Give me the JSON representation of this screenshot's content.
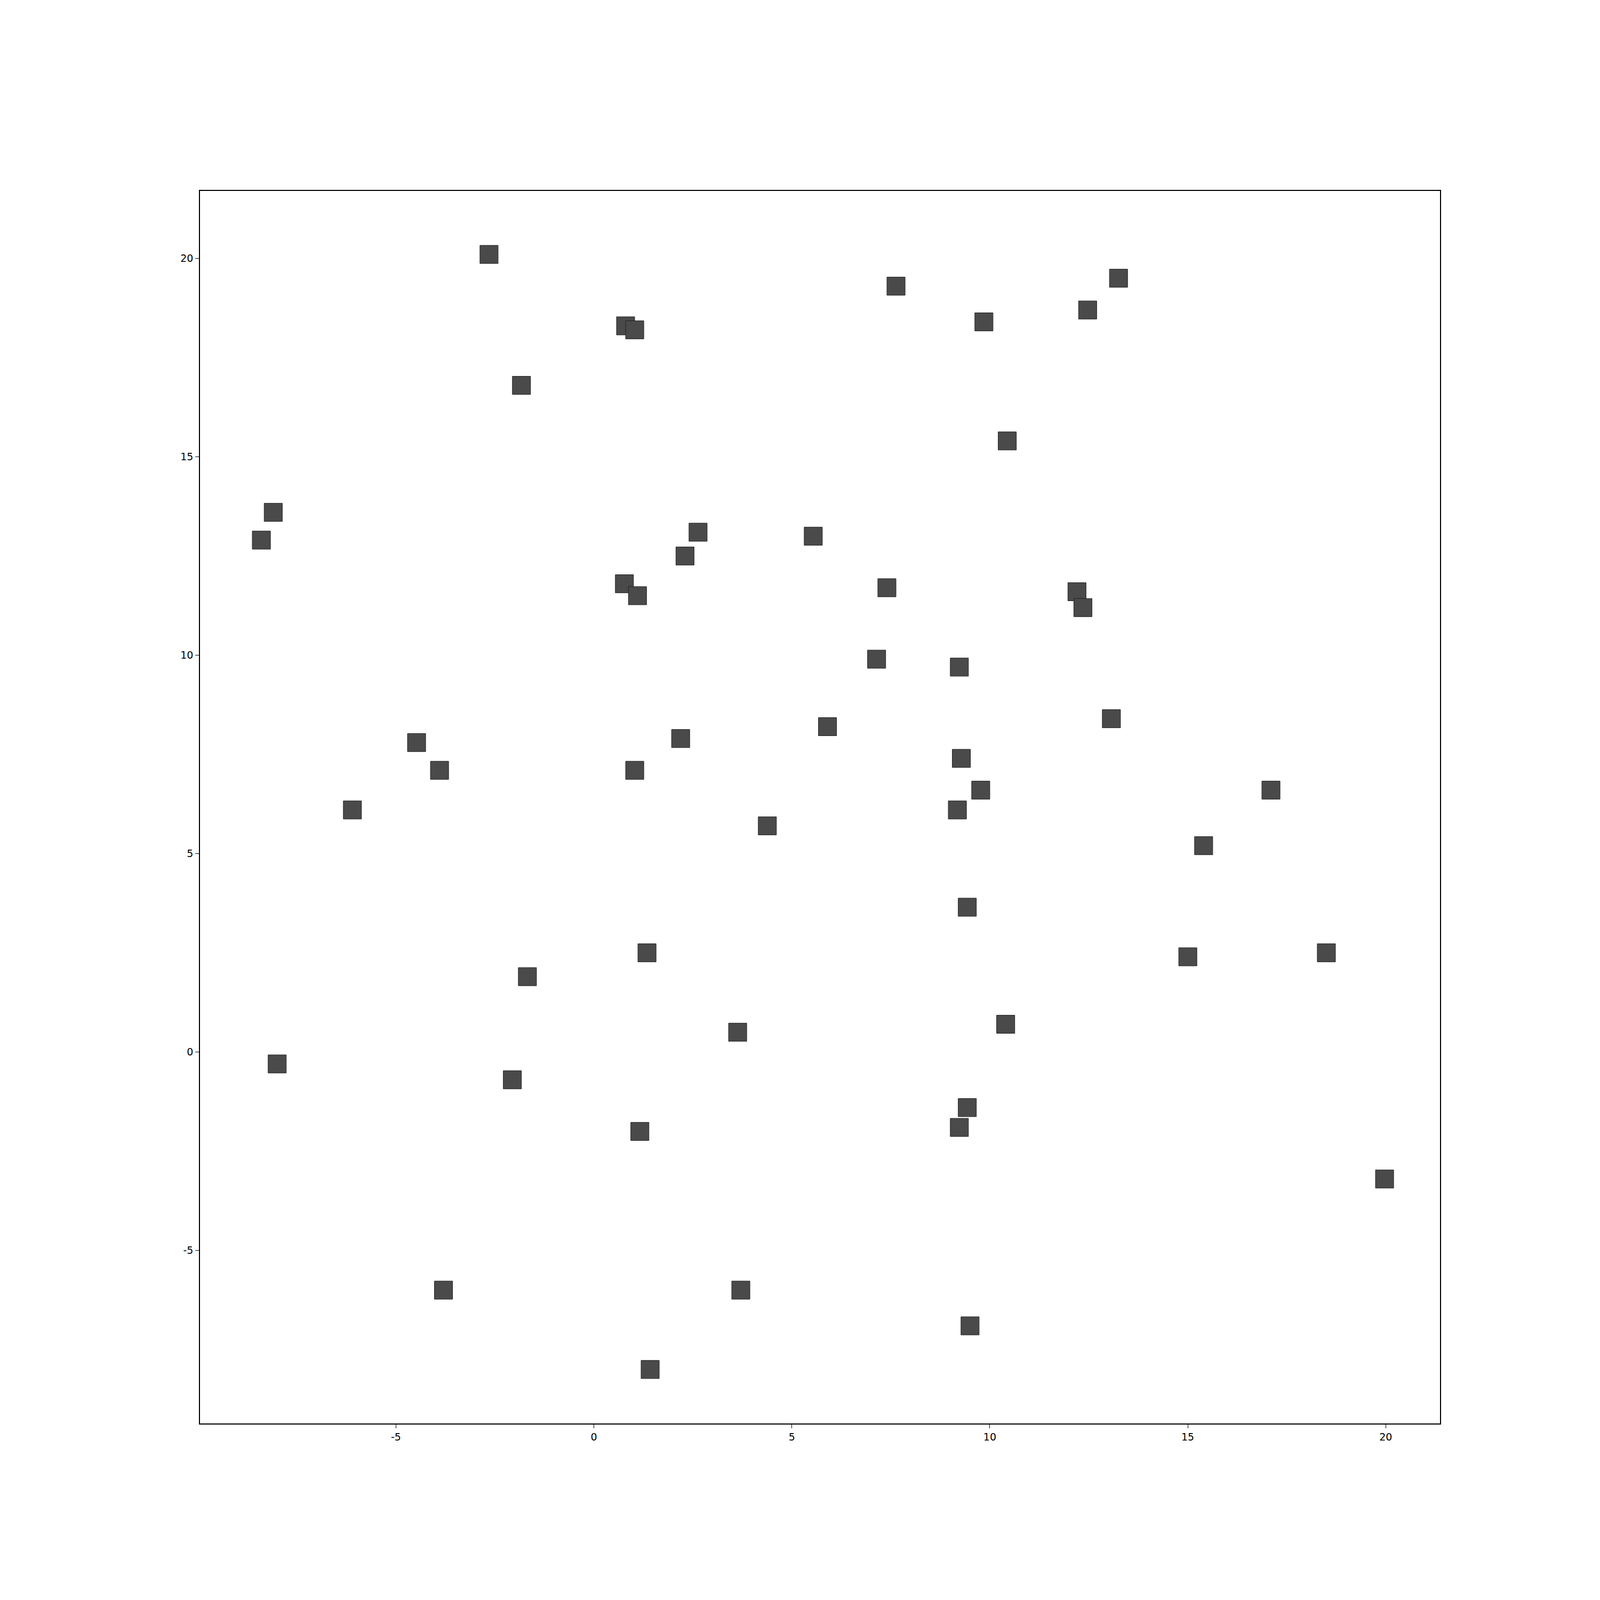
{
  "chart_data": {
    "type": "scatter",
    "marker": "square",
    "color": "#4a4a4a",
    "grid": false,
    "x": [
      -2.65,
      7.63,
      9.85,
      12.47,
      13.25,
      0.8,
      1.03,
      -1.83,
      10.44,
      -8.1,
      -8.4,
      2.63,
      2.3,
      5.54,
      0.77,
      1.1,
      7.4,
      12.2,
      12.35,
      7.14,
      9.23,
      13.07,
      5.9,
      2.19,
      -4.48,
      -3.9,
      1.03,
      -6.1,
      4.38,
      9.28,
      9.77,
      9.18,
      17.1,
      15.4,
      9.43,
      1.34,
      15.0,
      18.5,
      -1.68,
      3.63,
      10.4,
      -8.0,
      -2.06,
      9.43,
      9.23,
      1.16,
      19.97,
      -3.8,
      3.71,
      9.5,
      1.42
    ],
    "y": [
      20.1,
      19.3,
      18.4,
      18.7,
      19.5,
      18.3,
      18.2,
      16.8,
      15.4,
      13.6,
      12.9,
      13.1,
      12.5,
      13.0,
      11.8,
      11.5,
      11.7,
      11.6,
      11.2,
      9.9,
      9.7,
      8.4,
      8.2,
      7.9,
      7.8,
      7.1,
      7.1,
      6.1,
      5.7,
      7.4,
      6.6,
      6.1,
      6.6,
      5.2,
      3.65,
      2.5,
      2.4,
      2.5,
      1.9,
      0.5,
      0.7,
      -0.3,
      -0.7,
      -1.4,
      -1.9,
      -2.0,
      -3.2,
      -6.0,
      -6.0,
      -6.9,
      -8.0
    ],
    "xlim": [
      -9.95,
      21.37
    ],
    "ylim": [
      -9.36,
      21.7
    ],
    "xticks": [
      -5,
      0,
      5,
      10,
      15,
      20
    ],
    "yticks": [
      -5,
      0,
      5,
      10,
      15,
      20
    ]
  }
}
